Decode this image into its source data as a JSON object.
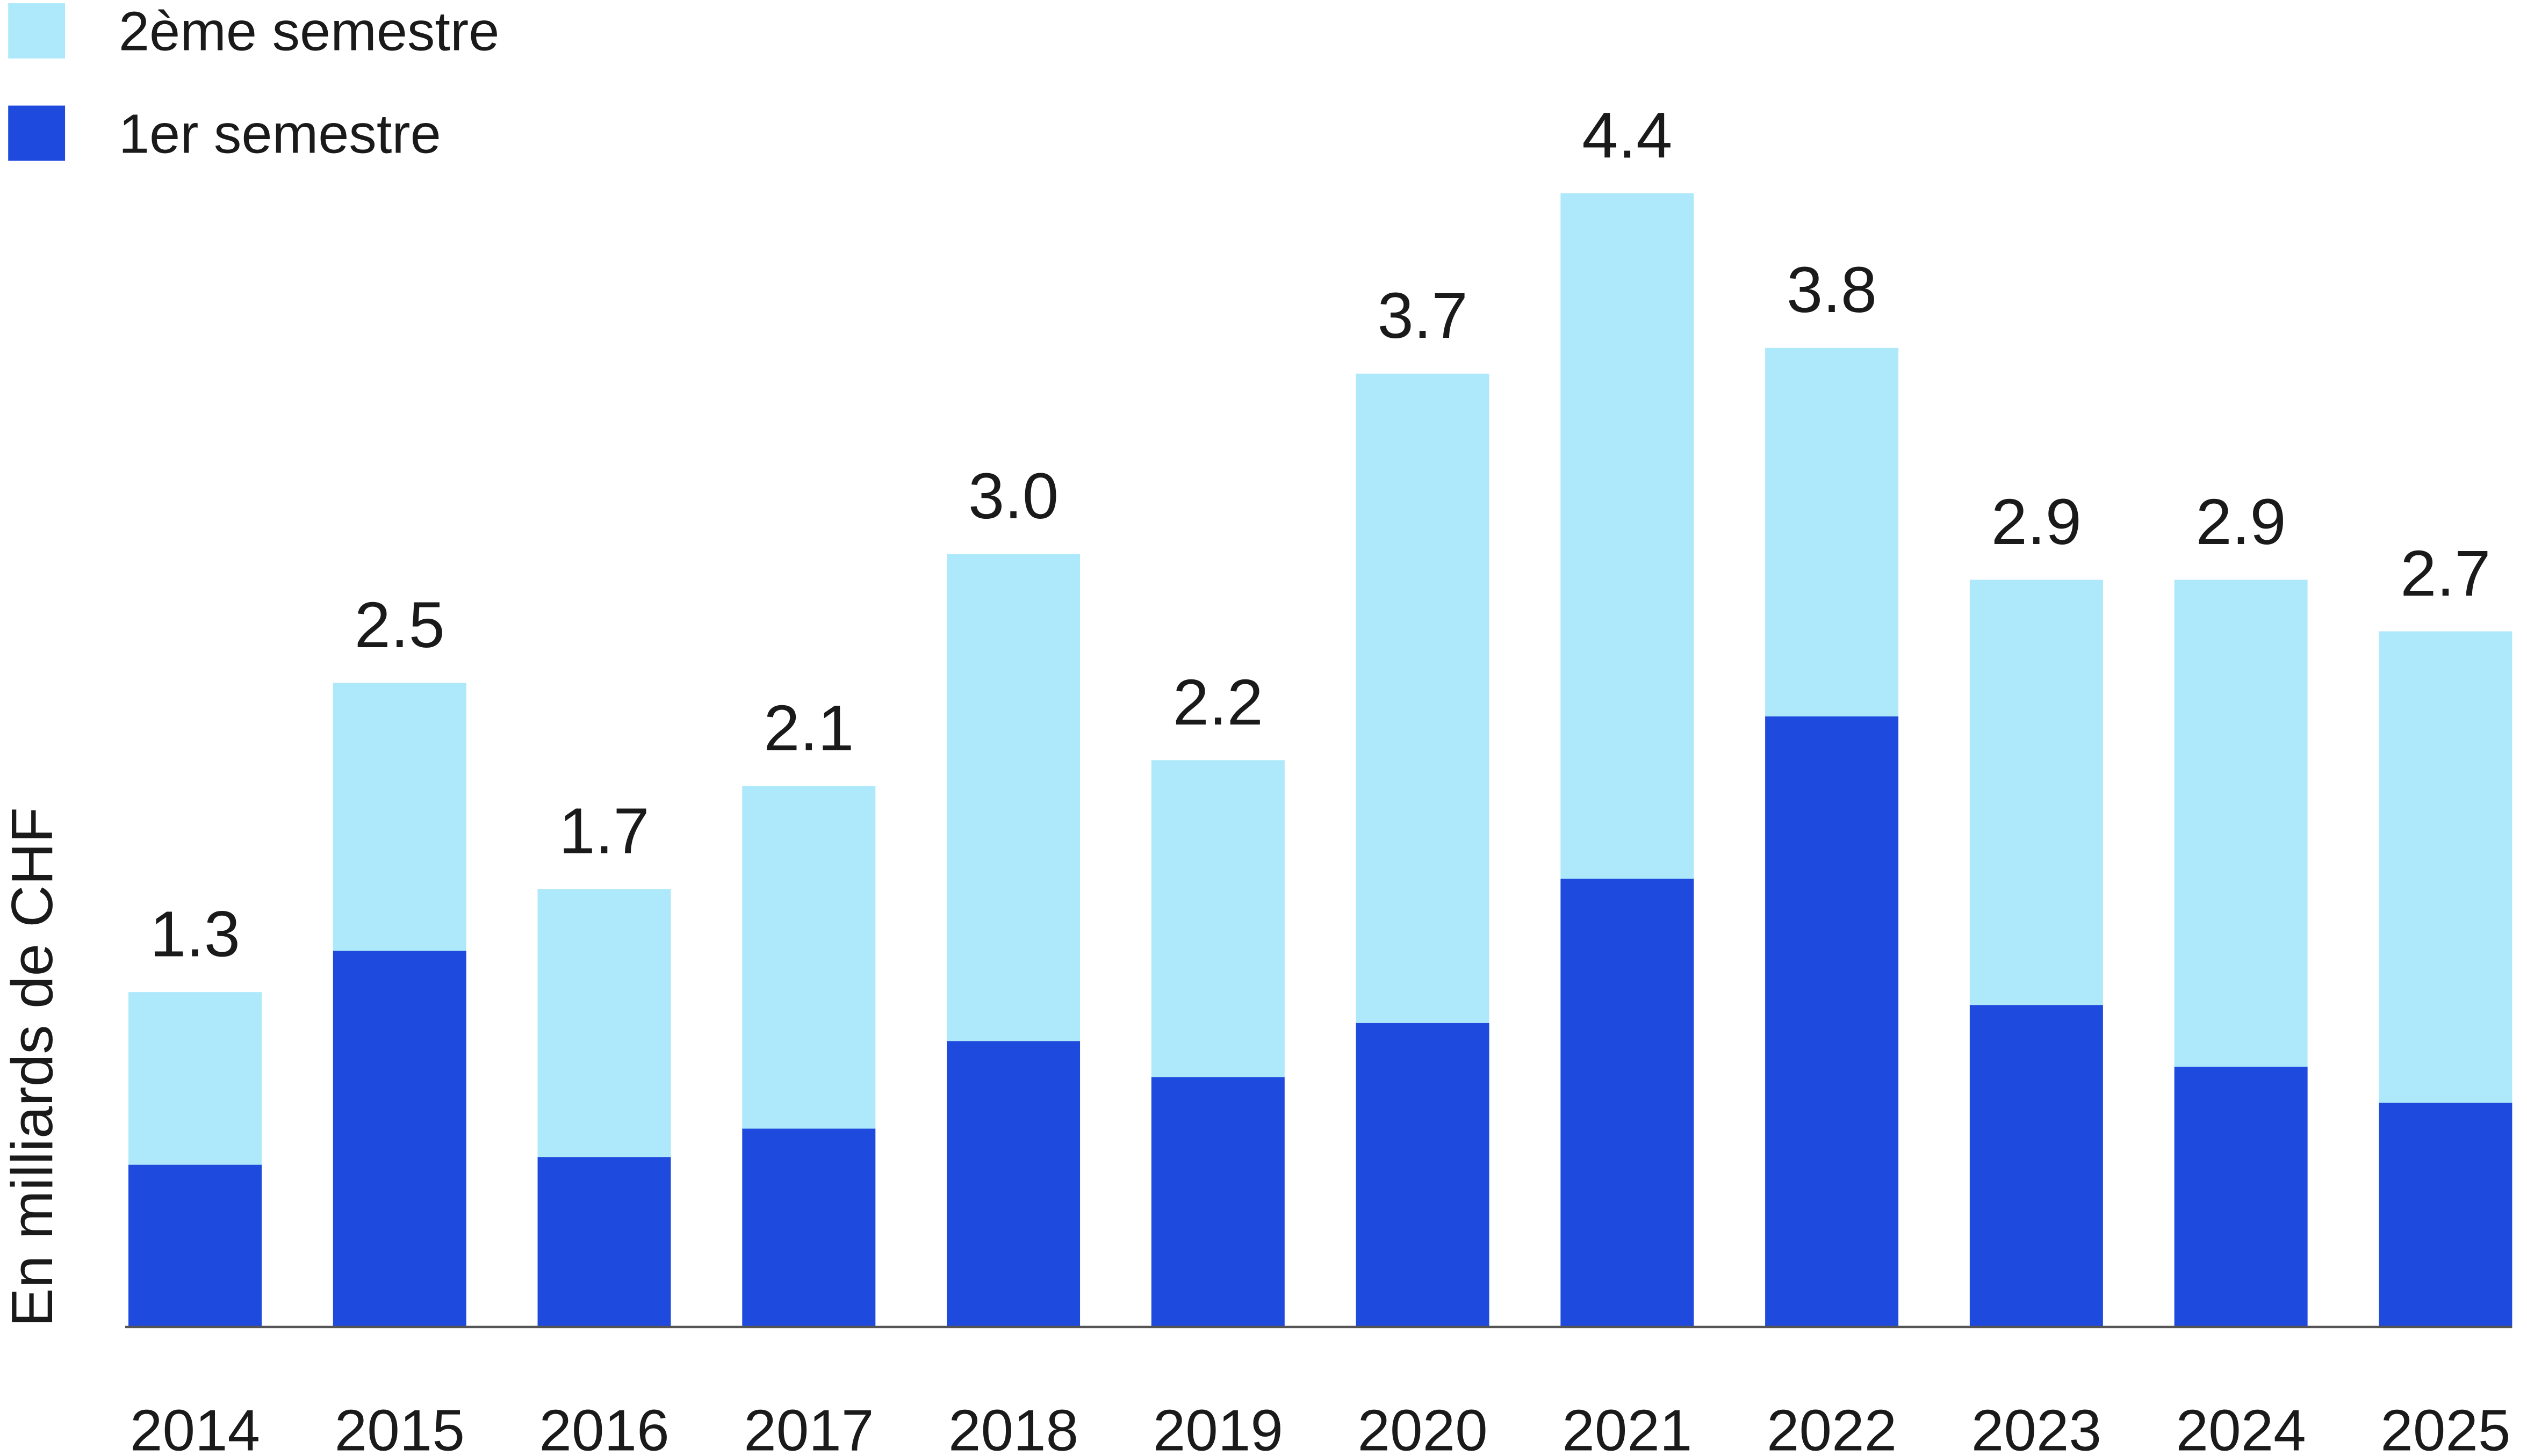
{
  "chart_data": {
    "type": "stacked_bar",
    "y_label": "En milliards de CHF",
    "categories": [
      "2014",
      "2015",
      "2016",
      "2017",
      "2018",
      "2019",
      "2020",
      "2021",
      "2022",
      "2023",
      "2024",
      "2025"
    ],
    "series": [
      {
        "name": "1er semestre",
        "color": "#1f4ade",
        "values": [
          0.63,
          1.46,
          0.66,
          0.77,
          1.11,
          0.97,
          1.18,
          1.74,
          2.37,
          1.25,
          1.01,
          0.87
        ]
      },
      {
        "name": "2ème semestre",
        "color": "#aee9fb",
        "values": [
          0.67,
          1.04,
          1.04,
          1.33,
          1.89,
          1.23,
          2.52,
          2.66,
          1.43,
          1.65,
          1.89,
          1.83
        ]
      }
    ],
    "totals": [
      1.3,
      2.5,
      1.7,
      2.1,
      3,
      2.2,
      3.7,
      4.4,
      3.8,
      2.9,
      2.9,
      2.7
    ],
    "total_labels": [
      "1.3",
      "2.5",
      "1.7",
      "2.1",
      "3.0",
      "2.2",
      "3.7",
      "4.4",
      "3.8",
      "2.9",
      "2.9",
      "2.7"
    ]
  }
}
